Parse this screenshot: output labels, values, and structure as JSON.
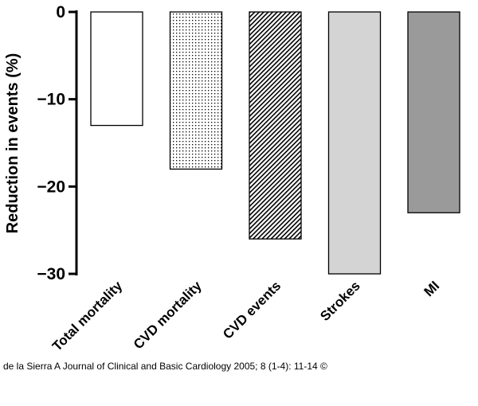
{
  "chart_data": {
    "type": "bar",
    "title": "",
    "xlabel": "",
    "ylabel": "Reduction in events (%)",
    "ylim": [
      -30,
      0
    ],
    "yticks": [
      0,
      -10,
      -20,
      -30
    ],
    "ytick_labels": [
      "0",
      "−10",
      "−20",
      "−30"
    ],
    "categories": [
      "Total mortality",
      "CVD mortality",
      "CVD events",
      "Strokes",
      "MI"
    ],
    "values": [
      -13,
      -18,
      -26,
      -30,
      -23
    ],
    "fills": [
      "white",
      "dots",
      "hatch",
      "light-gray",
      "dark-gray"
    ],
    "colors": {
      "light_gray": "#d4d4d4",
      "dark_gray": "#9a9a9a",
      "axis": "#000000"
    },
    "grid": false,
    "legend": "none"
  },
  "citation": "de la Sierra A Journal of Clinical and Basic Cardiology 2005; 8 (1-4): 11-14 ©"
}
